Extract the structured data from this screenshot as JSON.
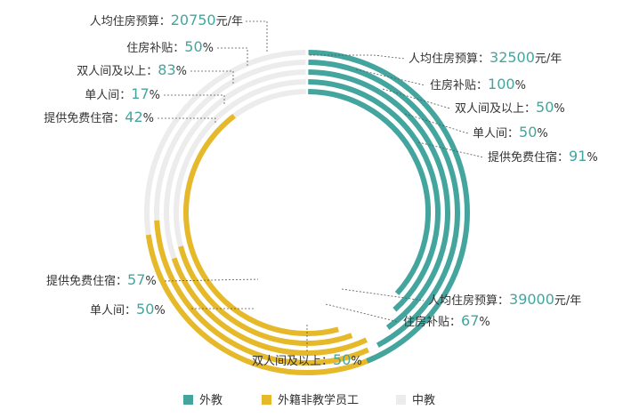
{
  "chart_data": {
    "type": "radial-bar",
    "colors": {
      "waijiao": "#44a59e",
      "waiji_staff": "#e6b92a",
      "zhongjiao": "#ececec",
      "value_waijiao": "#44a59e",
      "value_waiji_staff": "#3aa398",
      "value_zhongjiao": "#3aa398"
    },
    "legend": [
      {
        "key": "waijiao",
        "label": "外教"
      },
      {
        "key": "waiji_staff",
        "label": "外籍非教学员工"
      },
      {
        "key": "zhongjiao",
        "label": "中教"
      }
    ],
    "series": [
      {
        "key": "waijiao",
        "name": "外教",
        "items": [
          {
            "label": "人均住房预算：",
            "value": "32500",
            "unit": "元/年",
            "fraction": 0.8
          },
          {
            "label": "住房补贴：",
            "value": "100",
            "unit": "%",
            "fraction": 0.8
          },
          {
            "label": "双人间及以上：",
            "value": "50",
            "unit": "%",
            "fraction": 0.8
          },
          {
            "label": "单人间：",
            "value": "50",
            "unit": "%",
            "fraction": 0.8
          },
          {
            "label": "提供免费住宿：",
            "value": "91",
            "unit": "%",
            "fraction": 0.8
          }
        ]
      },
      {
        "key": "waiji_staff",
        "name": "外籍非教学员工",
        "items": [
          {
            "label": "人均住房预算：",
            "value": "39000",
            "unit": "元/年",
            "fraction": 0.34
          },
          {
            "label": "住房补贴：",
            "value": "67",
            "unit": "%",
            "fraction": 0.34
          },
          {
            "label": "双人间及以上：",
            "value": "50",
            "unit": "%",
            "fraction": 0.34
          },
          {
            "label": "单人间：",
            "value": "50",
            "unit": "%",
            "fraction": 0.34
          },
          {
            "label": "提供免费住宿：",
            "value": "57",
            "unit": "%",
            "fraction": 0.34
          }
        ]
      },
      {
        "key": "zhongjiao",
        "name": "中教",
        "items": [
          {
            "label": "人均住房预算：",
            "value": "20750",
            "unit": "元/年",
            "fraction": 0.2
          },
          {
            "label": "住房补贴：",
            "value": "50",
            "unit": "%",
            "fraction": 0.2
          },
          {
            "label": "双人间及以上：",
            "value": "83",
            "unit": "%",
            "fraction": 0.2
          },
          {
            "label": "单人间：",
            "value": "17",
            "unit": "%",
            "fraction": 0.2
          },
          {
            "label": "提供免费住宿：",
            "value": "42",
            "unit": "%",
            "fraction": 0.2
          }
        ]
      }
    ]
  }
}
